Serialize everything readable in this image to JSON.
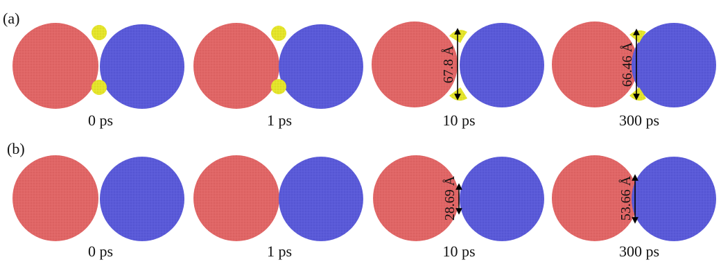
{
  "colors": {
    "left_particle": "#e06666",
    "right_particle": "#5a5ad8",
    "neck_particle": "#e4e42a",
    "arrow": "#000000"
  },
  "rows": [
    {
      "label": "(a)",
      "frames": [
        {
          "time": "0 ps",
          "measurement": "",
          "has_neck_particles": true
        },
        {
          "time": "1 ps",
          "measurement": "",
          "has_neck_particles": true
        },
        {
          "time": "10 ps",
          "measurement": "67.8 Å",
          "has_neck_particles": true
        },
        {
          "time": "300 ps",
          "measurement": "66.46 Å",
          "has_neck_particles": true
        }
      ]
    },
    {
      "label": "(b)",
      "frames": [
        {
          "time": "0 ps",
          "measurement": "",
          "has_neck_particles": false
        },
        {
          "time": "1 ps",
          "measurement": "",
          "has_neck_particles": false
        },
        {
          "time": "10 ps",
          "measurement": "28.69 Å",
          "has_neck_particles": false
        },
        {
          "time": "300 ps",
          "measurement": "53.66 Å",
          "has_neck_particles": false
        }
      ]
    }
  ]
}
